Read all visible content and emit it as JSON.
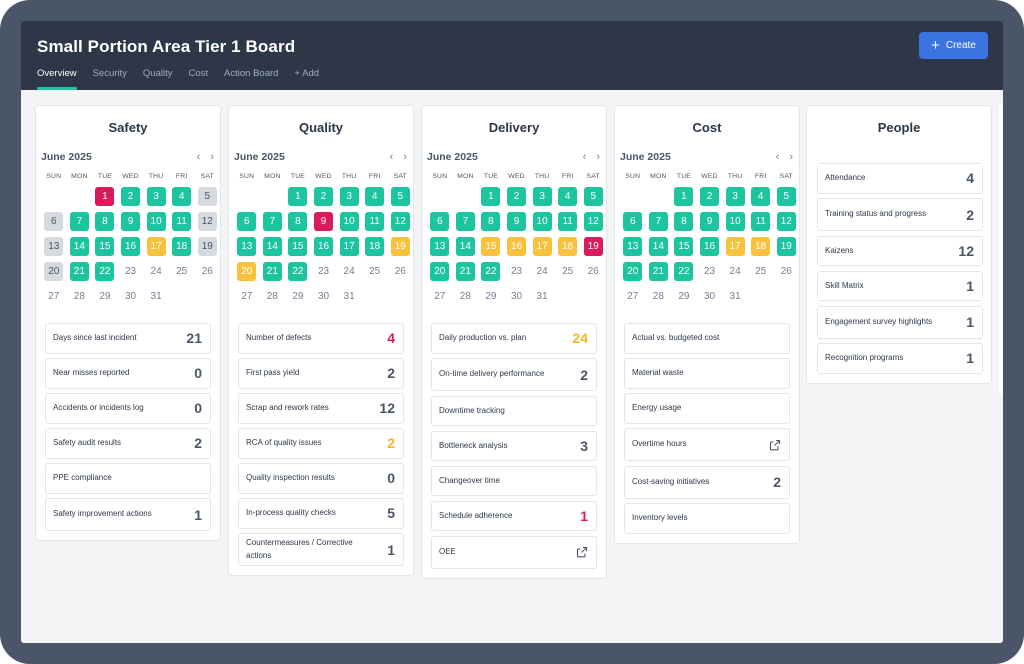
{
  "app": {
    "title": "Small Portion Area Tier 1 Board",
    "create_label": "Create",
    "tabs": [
      "Overview",
      "Security",
      "Quality",
      "Cost",
      "Action Board",
      "+ Add"
    ]
  },
  "colors": {
    "header_bg": "#2d3748",
    "accent": "#3b74e0",
    "tab_underline": "#22c4a6",
    "status_green": "#1cc4a0",
    "status_red": "#d91a5c",
    "status_yellow": "#f9c23c",
    "status_gray": "#d6d9de"
  },
  "weekdays": [
    "SUN",
    "MON",
    "TUE",
    "WED",
    "THU",
    "FRI",
    "SAT"
  ],
  "panels": [
    {
      "title": "Safety",
      "month": "June 2025",
      "calendar": [
        [
          null,
          null,
          [
            "1",
            "red"
          ],
          [
            "2",
            "green"
          ],
          [
            "3",
            "green"
          ],
          [
            "4",
            "green"
          ],
          [
            "5",
            "gray"
          ]
        ],
        [
          [
            "6",
            "gray"
          ],
          [
            "7",
            "green"
          ],
          [
            "8",
            "green"
          ],
          [
            "9",
            "green"
          ],
          [
            "10",
            "green"
          ],
          [
            "11",
            "green"
          ],
          [
            "12",
            "gray"
          ]
        ],
        [
          [
            "13",
            "gray"
          ],
          [
            "14",
            "green"
          ],
          [
            "15",
            "green"
          ],
          [
            "16",
            "green"
          ],
          [
            "17",
            "yellow"
          ],
          [
            "18",
            "green"
          ],
          [
            "19",
            "gray"
          ]
        ],
        [
          [
            "20",
            "gray"
          ],
          [
            "21",
            "green"
          ],
          [
            "22",
            "green"
          ],
          [
            "23",
            "plain"
          ],
          [
            "24",
            "plain"
          ],
          [
            "25",
            "plain"
          ],
          [
            "26",
            "plain"
          ]
        ],
        [
          [
            "27",
            "plain"
          ],
          [
            "28",
            "plain"
          ],
          [
            "29",
            "plain"
          ],
          [
            "30",
            "plain"
          ],
          [
            "31",
            "plain"
          ],
          null,
          null
        ]
      ],
      "metrics": [
        {
          "label": "Days since last incident",
          "value": "21",
          "tone": ""
        },
        {
          "label": "Near misses reported",
          "value": "0",
          "tone": ""
        },
        {
          "label": "Accidents or incidents log",
          "value": "0",
          "tone": ""
        },
        {
          "label": "Safety audit results",
          "value": "2",
          "tone": ""
        },
        {
          "label": "PPE compliance",
          "value": "",
          "tone": ""
        },
        {
          "label": "Safety improvement actions",
          "value": "1",
          "tone": "",
          "tall": true
        }
      ]
    },
    {
      "title": "Quality",
      "month": "June 2025",
      "calendar": [
        [
          null,
          null,
          [
            "1",
            "green"
          ],
          [
            "2",
            "green"
          ],
          [
            "3",
            "green"
          ],
          [
            "4",
            "green"
          ],
          [
            "5",
            "green"
          ]
        ],
        [
          [
            "6",
            "green"
          ],
          [
            "7",
            "green"
          ],
          [
            "8",
            "green"
          ],
          [
            "9",
            "red"
          ],
          [
            "10",
            "green"
          ],
          [
            "11",
            "green"
          ],
          [
            "12",
            "green"
          ]
        ],
        [
          [
            "13",
            "green"
          ],
          [
            "14",
            "green"
          ],
          [
            "15",
            "green"
          ],
          [
            "16",
            "green"
          ],
          [
            "17",
            "green"
          ],
          [
            "18",
            "green"
          ],
          [
            "19",
            "yellow"
          ]
        ],
        [
          [
            "20",
            "yellow"
          ],
          [
            "21",
            "green"
          ],
          [
            "22",
            "green"
          ],
          [
            "23",
            "plain"
          ],
          [
            "24",
            "plain"
          ],
          [
            "25",
            "plain"
          ],
          [
            "26",
            "plain"
          ]
        ],
        [
          [
            "27",
            "plain"
          ],
          [
            "28",
            "plain"
          ],
          [
            "29",
            "plain"
          ],
          [
            "30",
            "plain"
          ],
          [
            "31",
            "plain"
          ],
          null,
          null
        ]
      ],
      "metrics": [
        {
          "label": "Number of defects",
          "value": "4",
          "tone": "red"
        },
        {
          "label": "First pass yield",
          "value": "2",
          "tone": ""
        },
        {
          "label": "Scrap and rework rates",
          "value": "12",
          "tone": ""
        },
        {
          "label": "RCA of quality issues",
          "value": "2",
          "tone": "yellow"
        },
        {
          "label": "Quality inspection results",
          "value": "0",
          "tone": ""
        },
        {
          "label": "In-process quality checks",
          "value": "5",
          "tone": ""
        },
        {
          "label": "Countermeasures / Corrective actions",
          "value": "1",
          "tone": "",
          "tall": true
        }
      ]
    },
    {
      "title": "Delivery",
      "month": "June 2025",
      "calendar": [
        [
          null,
          null,
          [
            "1",
            "green"
          ],
          [
            "2",
            "green"
          ],
          [
            "3",
            "green"
          ],
          [
            "4",
            "green"
          ],
          [
            "5",
            "green"
          ]
        ],
        [
          [
            "6",
            "green"
          ],
          [
            "7",
            "green"
          ],
          [
            "8",
            "green"
          ],
          [
            "9",
            "green"
          ],
          [
            "10",
            "green"
          ],
          [
            "11",
            "green"
          ],
          [
            "12",
            "green"
          ]
        ],
        [
          [
            "13",
            "green"
          ],
          [
            "14",
            "green"
          ],
          [
            "15",
            "yellow"
          ],
          [
            "16",
            "yellow"
          ],
          [
            "17",
            "yellow"
          ],
          [
            "18",
            "yellow"
          ],
          [
            "19",
            "red"
          ]
        ],
        [
          [
            "20",
            "green"
          ],
          [
            "21",
            "green"
          ],
          [
            "22",
            "green"
          ],
          [
            "23",
            "plain"
          ],
          [
            "24",
            "plain"
          ],
          [
            "25",
            "plain"
          ],
          [
            "26",
            "plain"
          ]
        ],
        [
          [
            "27",
            "plain"
          ],
          [
            "28",
            "plain"
          ],
          [
            "29",
            "plain"
          ],
          [
            "30",
            "plain"
          ],
          [
            "31",
            "plain"
          ],
          null,
          null
        ]
      ],
      "metrics": [
        {
          "label": "Daily production vs. plan",
          "value": "24",
          "tone": "yellow"
        },
        {
          "label": "On-time delivery performance",
          "value": "2",
          "tone": "",
          "tall": true
        },
        {
          "label": "Downtime tracking",
          "value": "",
          "tone": ""
        },
        {
          "label": "Bottleneck analysis",
          "value": "3",
          "tone": ""
        },
        {
          "label": "Changeover time",
          "value": "",
          "tone": ""
        },
        {
          "label": "Schedule adherence",
          "value": "1",
          "tone": "red"
        },
        {
          "label": "OEE",
          "value": "",
          "tone": "",
          "icon": "external-link-icon",
          "tall": true
        }
      ]
    },
    {
      "title": "Cost",
      "month": "June 2025",
      "calendar": [
        [
          null,
          null,
          [
            "1",
            "green"
          ],
          [
            "2",
            "green"
          ],
          [
            "3",
            "green"
          ],
          [
            "4",
            "green"
          ],
          [
            "5",
            "green"
          ]
        ],
        [
          [
            "6",
            "green"
          ],
          [
            "7",
            "green"
          ],
          [
            "8",
            "green"
          ],
          [
            "9",
            "green"
          ],
          [
            "10",
            "green"
          ],
          [
            "11",
            "green"
          ],
          [
            "12",
            "green"
          ]
        ],
        [
          [
            "13",
            "green"
          ],
          [
            "14",
            "green"
          ],
          [
            "15",
            "green"
          ],
          [
            "16",
            "green"
          ],
          [
            "17",
            "yellow"
          ],
          [
            "18",
            "yellow"
          ],
          [
            "19",
            "green"
          ]
        ],
        [
          [
            "20",
            "green"
          ],
          [
            "21",
            "green"
          ],
          [
            "22",
            "green"
          ],
          [
            "23",
            "plain"
          ],
          [
            "24",
            "plain"
          ],
          [
            "25",
            "plain"
          ],
          [
            "26",
            "plain"
          ]
        ],
        [
          [
            "27",
            "plain"
          ],
          [
            "28",
            "plain"
          ],
          [
            "29",
            "plain"
          ],
          [
            "30",
            "plain"
          ],
          [
            "31",
            "plain"
          ],
          null,
          null
        ]
      ],
      "metrics": [
        {
          "label": "Actual vs. budgeted cost",
          "value": "",
          "tone": ""
        },
        {
          "label": "Material waste",
          "value": "",
          "tone": ""
        },
        {
          "label": "Energy usage",
          "value": "",
          "tone": ""
        },
        {
          "label": "Overtime hours",
          "value": "",
          "tone": "",
          "icon": "external-link-icon",
          "tall": true
        },
        {
          "label": "Cost-saving initiatives",
          "value": "2",
          "tone": "",
          "tall": true
        },
        {
          "label": "Inventory levels",
          "value": "",
          "tone": ""
        }
      ]
    }
  ],
  "people": {
    "title": "People",
    "metrics": [
      {
        "label": "Attendance",
        "value": "4",
        "tone": ""
      },
      {
        "label": "Training status and progress",
        "value": "2",
        "tone": "",
        "tall": true
      },
      {
        "label": "Kaizens",
        "value": "12",
        "tone": ""
      },
      {
        "label": "Skill Matrix",
        "value": "1",
        "tone": ""
      },
      {
        "label": "Engagement survey highlights",
        "value": "1",
        "tone": "",
        "tall": true
      },
      {
        "label": "Recognition programs",
        "value": "1",
        "tone": ""
      }
    ]
  }
}
